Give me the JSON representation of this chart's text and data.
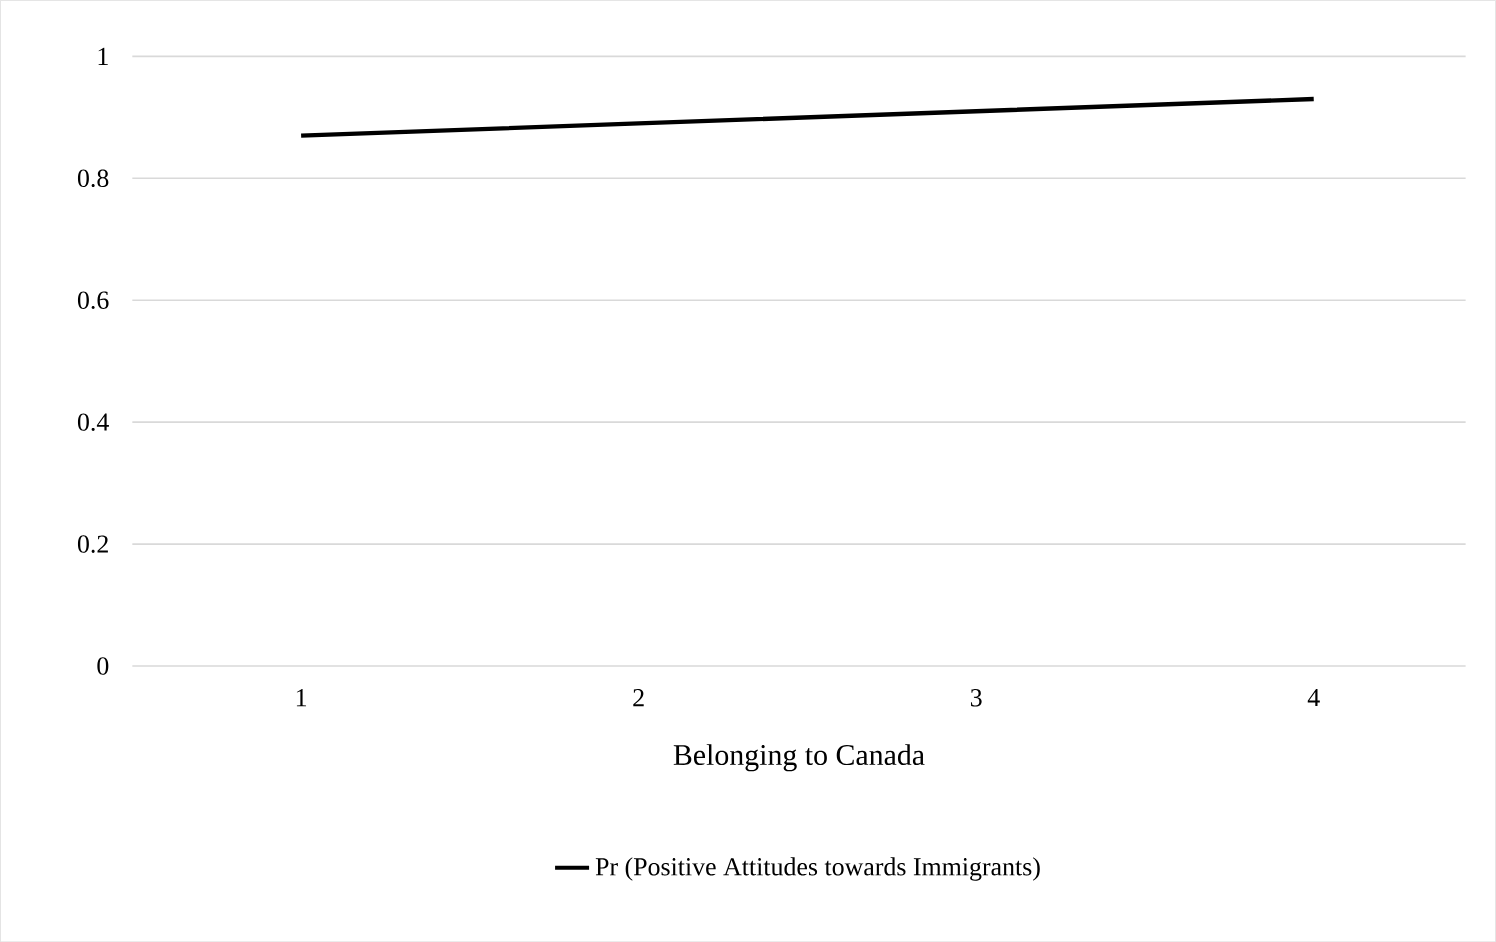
{
  "chart_data": {
    "type": "line",
    "xlabel": "Belonging to Canada",
    "categories": [
      "1",
      "2",
      "3",
      "4"
    ],
    "series": [
      {
        "name": "Pr (Positive Attitudes towards Immigrants)",
        "color": "#000000",
        "values": [
          0.87,
          0.89,
          0.91,
          0.93
        ]
      }
    ],
    "ylim": [
      0,
      1
    ],
    "yticks": [
      {
        "value": 0,
        "label": "0"
      },
      {
        "value": 0.2,
        "label": "0.2"
      },
      {
        "value": 0.4,
        "label": "0.4"
      },
      {
        "value": 0.6,
        "label": "0.6"
      },
      {
        "value": 0.8,
        "label": "0.8"
      },
      {
        "value": 1,
        "label": "1"
      }
    ],
    "grid": "y",
    "legend": "bottom",
    "marker": "none",
    "line_style": "solid"
  }
}
